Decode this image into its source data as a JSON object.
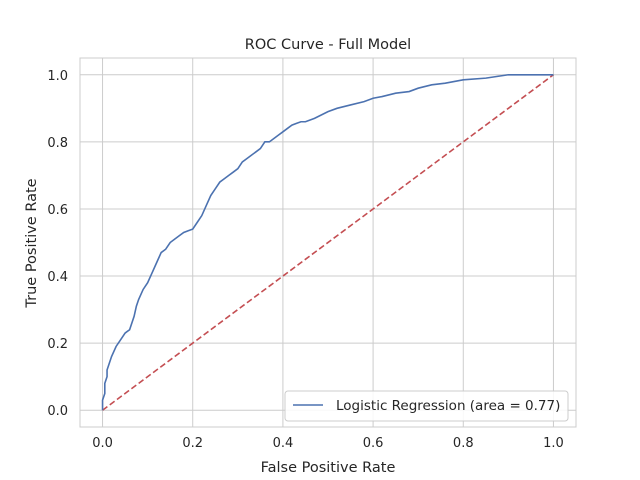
{
  "chart_data": {
    "type": "line",
    "title": "ROC Curve - Full Model",
    "xlabel": "False Positive Rate",
    "ylabel": "True Positive Rate",
    "xlim": [
      -0.05,
      1.05
    ],
    "ylim": [
      -0.05,
      1.05
    ],
    "xticks": [
      0.0,
      0.2,
      0.4,
      0.6,
      0.8,
      1.0
    ],
    "xtick_labels": [
      "0.0",
      "0.2",
      "0.4",
      "0.6",
      "0.8",
      "1.0"
    ],
    "yticks": [
      0.0,
      0.2,
      0.4,
      0.6,
      0.8,
      1.0
    ],
    "ytick_labels": [
      "0.0",
      "0.2",
      "0.4",
      "0.6",
      "0.8",
      "1.0"
    ],
    "grid": true,
    "legend_position": "lower-right",
    "series": [
      {
        "name": "Logistic Regression (area = 0.77)",
        "color": "#4c72b0",
        "style": "solid",
        "x": [
          0.0,
          0.0,
          0.005,
          0.005,
          0.01,
          0.01,
          0.015,
          0.02,
          0.03,
          0.04,
          0.05,
          0.06,
          0.07,
          0.075,
          0.08,
          0.09,
          0.1,
          0.11,
          0.12,
          0.13,
          0.14,
          0.15,
          0.16,
          0.17,
          0.18,
          0.19,
          0.2,
          0.21,
          0.22,
          0.23,
          0.24,
          0.25,
          0.26,
          0.27,
          0.28,
          0.29,
          0.3,
          0.31,
          0.32,
          0.33,
          0.34,
          0.35,
          0.36,
          0.37,
          0.38,
          0.39,
          0.4,
          0.41,
          0.42,
          0.43,
          0.44,
          0.45,
          0.47,
          0.5,
          0.52,
          0.55,
          0.58,
          0.6,
          0.62,
          0.65,
          0.68,
          0.7,
          0.73,
          0.76,
          0.8,
          0.85,
          0.9,
          0.95,
          1.0
        ],
        "y": [
          0.0,
          0.03,
          0.05,
          0.08,
          0.1,
          0.12,
          0.14,
          0.16,
          0.19,
          0.21,
          0.23,
          0.24,
          0.28,
          0.31,
          0.33,
          0.36,
          0.38,
          0.41,
          0.44,
          0.47,
          0.48,
          0.5,
          0.51,
          0.52,
          0.53,
          0.535,
          0.54,
          0.56,
          0.58,
          0.61,
          0.64,
          0.66,
          0.68,
          0.69,
          0.7,
          0.71,
          0.72,
          0.74,
          0.75,
          0.76,
          0.77,
          0.78,
          0.8,
          0.8,
          0.81,
          0.82,
          0.83,
          0.84,
          0.85,
          0.855,
          0.86,
          0.86,
          0.87,
          0.89,
          0.9,
          0.91,
          0.92,
          0.93,
          0.935,
          0.945,
          0.95,
          0.96,
          0.97,
          0.975,
          0.985,
          0.99,
          1.0,
          1.0,
          1.0
        ]
      },
      {
        "name": "",
        "color": "#c44e52",
        "style": "dashed",
        "x": [
          0.0,
          1.0
        ],
        "y": [
          0.0,
          1.0
        ]
      }
    ]
  }
}
